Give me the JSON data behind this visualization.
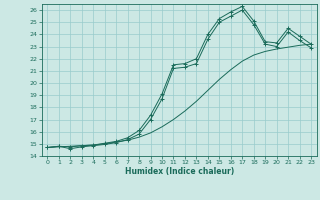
{
  "xlabel": "Humidex (Indice chaleur)",
  "bg_color": "#cce8e4",
  "grid_color": "#99cccc",
  "line_color": "#1a6b5a",
  "xlim": [
    -0.5,
    23.5
  ],
  "ylim": [
    14,
    26.5
  ],
  "xticks": [
    0,
    1,
    2,
    3,
    4,
    5,
    6,
    7,
    8,
    9,
    10,
    11,
    12,
    13,
    14,
    15,
    16,
    17,
    18,
    19,
    20,
    21,
    22,
    23
  ],
  "yticks": [
    14,
    15,
    16,
    17,
    18,
    19,
    20,
    21,
    22,
    23,
    24,
    25,
    26
  ],
  "line1_x": [
    0,
    1,
    2,
    3,
    4,
    5,
    6,
    7,
    8,
    9,
    10,
    11,
    12,
    13,
    14,
    15,
    16,
    17,
    18,
    19,
    20,
    21,
    22,
    23
  ],
  "line1_y": [
    14.7,
    14.8,
    14.75,
    14.85,
    14.9,
    15.05,
    15.2,
    15.5,
    16.1,
    17.35,
    19.1,
    21.5,
    21.6,
    22.0,
    24.0,
    25.3,
    25.85,
    26.3,
    25.1,
    23.4,
    23.3,
    24.5,
    23.85,
    23.2
  ],
  "line2_x": [
    0,
    1,
    2,
    3,
    4,
    5,
    6,
    7,
    8,
    9,
    10,
    11,
    12,
    13,
    14,
    15,
    16,
    17,
    18,
    19,
    20,
    21,
    22,
    23
  ],
  "line2_y": [
    14.7,
    14.8,
    14.6,
    14.75,
    14.85,
    14.95,
    15.1,
    15.35,
    15.8,
    17.0,
    18.7,
    21.2,
    21.3,
    21.6,
    23.6,
    25.0,
    25.5,
    26.0,
    24.8,
    23.2,
    23.0,
    24.2,
    23.5,
    22.9
  ],
  "line3_x": [
    0,
    1,
    2,
    3,
    4,
    5,
    6,
    7,
    8,
    9,
    10,
    11,
    12,
    13,
    14,
    15,
    16,
    17,
    18,
    19,
    20,
    21,
    22,
    23
  ],
  "line3_y": [
    14.7,
    14.75,
    14.8,
    14.85,
    14.9,
    15.0,
    15.15,
    15.3,
    15.55,
    15.9,
    16.4,
    17.0,
    17.7,
    18.5,
    19.4,
    20.3,
    21.1,
    21.8,
    22.3,
    22.6,
    22.8,
    22.95,
    23.1,
    23.2
  ]
}
